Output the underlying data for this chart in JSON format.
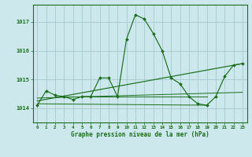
{
  "title": "Graphe pression niveau de la mer (hPa)",
  "background_color": "#cce8ec",
  "grid_color": "#aacdd4",
  "line_color": "#1a6e1a",
  "marker_color": "#1a6e1a",
  "xlim": [
    -0.5,
    23.5
  ],
  "ylim": [
    1013.5,
    1017.6
  ],
  "xticks": [
    0,
    1,
    2,
    3,
    4,
    5,
    6,
    7,
    8,
    9,
    10,
    11,
    12,
    13,
    14,
    15,
    16,
    17,
    18,
    19,
    20,
    21,
    22,
    23
  ],
  "yticks": [
    1014,
    1015,
    1016,
    1017
  ],
  "series_main": {
    "x": [
      0,
      1,
      2,
      3,
      4,
      5,
      6,
      7,
      8,
      9,
      10,
      11,
      12,
      13,
      14,
      15,
      16,
      17,
      18,
      19,
      20,
      21,
      22,
      23
    ],
    "y": [
      1014.1,
      1014.6,
      1014.45,
      1014.4,
      1014.3,
      1014.4,
      1014.4,
      1015.05,
      1015.05,
      1014.4,
      1016.4,
      1017.25,
      1017.1,
      1016.6,
      1016.0,
      1015.05,
      1014.85,
      1014.4,
      1014.15,
      1014.1,
      1014.4,
      1015.1,
      1015.5,
      1015.55
    ]
  },
  "trend_line": {
    "x": [
      0,
      23
    ],
    "y": [
      1014.25,
      1015.55
    ]
  },
  "flat_line1": {
    "x": [
      0,
      23
    ],
    "y": [
      1014.35,
      1014.55
    ]
  },
  "flat_line2": {
    "x": [
      2,
      19
    ],
    "y": [
      1014.4,
      1014.4
    ]
  },
  "bottom_line": {
    "x": [
      0,
      19
    ],
    "y": [
      1014.15,
      1014.1
    ]
  }
}
